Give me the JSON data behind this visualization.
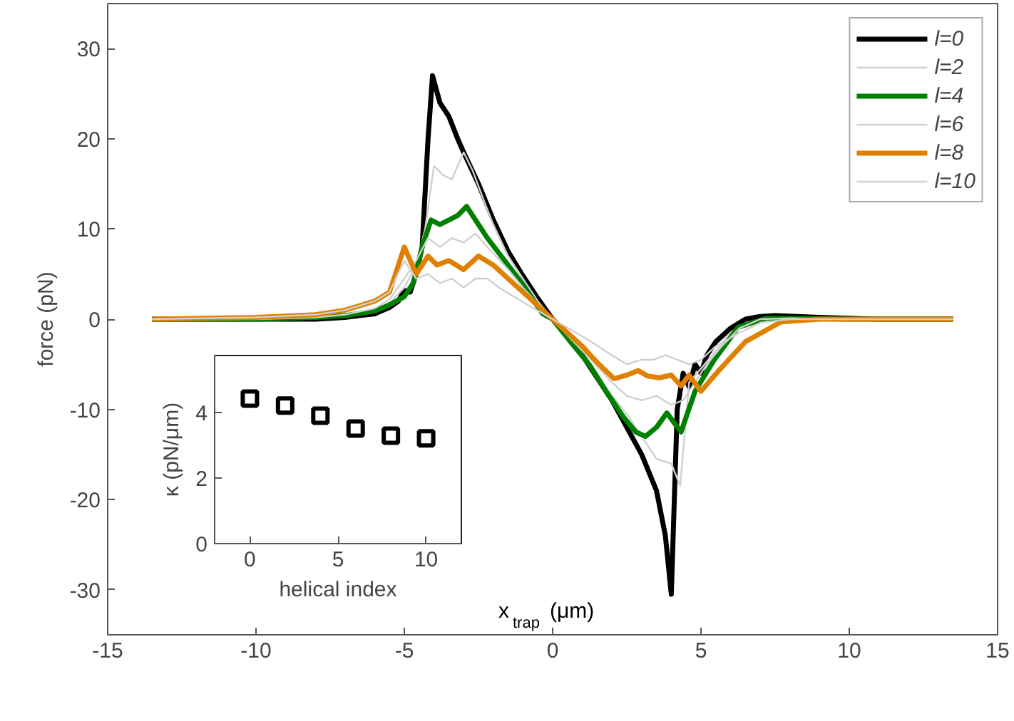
{
  "chart_data": [
    {
      "type": "line",
      "xlabel": "x$_{trap}$ (μm)",
      "ylabel": "force (pN)",
      "xlim": [
        -15,
        15
      ],
      "ylim": [
        -35,
        35
      ],
      "xticks": [
        -15,
        -10,
        -5,
        0,
        5,
        10,
        15
      ],
      "yticks": [
        -30,
        -20,
        -10,
        0,
        10,
        20,
        30
      ],
      "grid": false,
      "legend": "top right",
      "line_style": "solid",
      "marker": "none",
      "series": [
        {
          "name": "l=0",
          "color": "#000000",
          "x": [
            -13.5,
            -10,
            -8,
            -7,
            -6,
            -5.5,
            -5.2,
            -5,
            -4.8,
            -4.6,
            -4.4,
            -4.2,
            -4.05,
            -3.8,
            -3.5,
            -3.2,
            -3,
            -2.5,
            -2,
            -1.5,
            -1,
            -0.5,
            0,
            0.5,
            1,
            1.5,
            2,
            2.5,
            3,
            3.5,
            3.8,
            4.0,
            4.2,
            4.4,
            4.6,
            4.8,
            5.0,
            5.2,
            5.5,
            6,
            6.5,
            7,
            7.5,
            9,
            11,
            13.5
          ],
          "values": [
            0,
            0,
            0,
            0.2,
            0.6,
            1.3,
            2,
            3.2,
            3,
            5,
            8,
            20,
            27,
            24,
            22.5,
            20,
            18.5,
            15,
            11,
            7.5,
            4.8,
            2.3,
            0,
            -2,
            -4,
            -6.5,
            -9,
            -12,
            -15,
            -19,
            -24,
            -30.5,
            -10,
            -6,
            -7.5,
            -5,
            -6,
            -4,
            -2.5,
            -1,
            0,
            0.3,
            0.4,
            0.2,
            0,
            0
          ]
        },
        {
          "name": "l=2",
          "color": "#d0d0d0",
          "x": [
            -13.5,
            -10,
            -8,
            -7,
            -6,
            -5.5,
            -5,
            -4.6,
            -4.3,
            -4.0,
            -3.7,
            -3.4,
            -3.0,
            -2.7,
            -2.3,
            -2,
            -1.5,
            -1,
            -0.5,
            0,
            0.5,
            1,
            1.5,
            2,
            2.5,
            3,
            3.5,
            4,
            4.3,
            4.6,
            5,
            5.5,
            6,
            6.5,
            7,
            8,
            10,
            13.5
          ],
          "values": [
            0,
            0,
            0.1,
            0.3,
            0.8,
            1.8,
            3.5,
            6,
            10,
            17,
            16,
            15.5,
            18.5,
            16.5,
            13,
            10.5,
            7,
            4.5,
            2,
            0,
            -2,
            -4,
            -6,
            -8.5,
            -10.5,
            -13,
            -15.5,
            -16,
            -18.5,
            -7,
            -5.5,
            -3.5,
            -1.5,
            -0.5,
            0,
            0.2,
            0,
            0
          ]
        },
        {
          "name": "l=4",
          "color": "#008000",
          "x": [
            -13.5,
            -10,
            -8,
            -7,
            -6,
            -5.5,
            -5,
            -4.7,
            -4.4,
            -4.1,
            -3.8,
            -3.5,
            -3.2,
            -2.9,
            -2.6,
            -2.2,
            -1.5,
            -1,
            -0.34,
            0,
            0.6,
            1.25,
            1.8,
            2.4,
            2.8,
            3.13,
            3.5,
            3.85,
            4.1,
            4.33,
            4.8,
            5.43,
            6.25,
            7.2,
            8,
            10,
            13.5
          ],
          "values": [
            0,
            0,
            0.2,
            0.4,
            0.9,
            1.6,
            2.5,
            4,
            8,
            11,
            10.5,
            11,
            11.5,
            12.5,
            11,
            9,
            6,
            3.8,
            0.6,
            0,
            -2.5,
            -5.1,
            -8,
            -10.9,
            -12.5,
            -13,
            -12,
            -10.4,
            -11.5,
            -12.5,
            -8,
            -4.6,
            -0.9,
            0.1,
            0.1,
            0,
            0
          ]
        },
        {
          "name": "l=6",
          "color": "#d0d0d0",
          "x": [
            -13.5,
            -10,
            -8,
            -7,
            -6,
            -5.5,
            -5,
            -4.6,
            -4.2,
            -3.8,
            -3.4,
            -3.0,
            -2.6,
            -2.2,
            -1.5,
            -1,
            -0.5,
            0,
            0.5,
            1,
            1.5,
            2,
            2.5,
            3,
            3.5,
            4,
            4.4,
            4.8,
            5.2,
            5.7,
            6.3,
            7,
            8,
            10,
            13.5
          ],
          "values": [
            0,
            0,
            0.2,
            0.5,
            1.2,
            2.2,
            4.5,
            6.5,
            9,
            8,
            9,
            8.5,
            9.5,
            8,
            5.5,
            3.5,
            1.7,
            0,
            -1.8,
            -3.5,
            -5.2,
            -7,
            -8.5,
            -9,
            -8.5,
            -9.5,
            -9,
            -7,
            -5,
            -3,
            -1,
            0,
            0.1,
            0,
            0
          ]
        },
        {
          "name": "l=8",
          "color": "#e08000",
          "x": [
            -13.5,
            -10,
            -8,
            -7,
            -6,
            -5.5,
            -5.0,
            -4.6,
            -4.2,
            -3.9,
            -3.5,
            -3.0,
            -2.5,
            -2,
            -1.5,
            -1,
            -0.5,
            0,
            0.5,
            1,
            1.5,
            2.07,
            2.5,
            2.88,
            3.2,
            3.6,
            4.0,
            4.33,
            4.6,
            5.0,
            5.6,
            6.5,
            7.7,
            9,
            13.5
          ],
          "values": [
            0,
            0.2,
            0.5,
            1,
            2,
            3,
            8,
            5,
            7,
            6,
            6.5,
            5.5,
            7,
            6,
            4.5,
            3,
            1.5,
            0,
            -1.5,
            -3,
            -4.8,
            -6.6,
            -6.2,
            -5.7,
            -6.3,
            -6.5,
            -6.2,
            -7.4,
            -6.2,
            -8,
            -5.7,
            -2.5,
            -0.3,
            0,
            0
          ]
        },
        {
          "name": "l=10",
          "color": "#d0d0d0",
          "x": [
            -13.5,
            -10,
            -8,
            -7,
            -6,
            -5.5,
            -5,
            -4.6,
            -4.2,
            -3.8,
            -3.4,
            -3.0,
            -2.6,
            -2.2,
            -1.8,
            -1.3,
            -0.8,
            0,
            0.8,
            1.3,
            2,
            2.5,
            3,
            3.4,
            3.8,
            4.2,
            4.6,
            5,
            5.5,
            6.3,
            7,
            8,
            10,
            13.5
          ],
          "values": [
            0,
            0.2,
            0.5,
            1,
            2,
            3,
            6.5,
            4.5,
            5,
            4,
            4.5,
            3.5,
            4.5,
            4.5,
            3.5,
            2.5,
            1.5,
            0,
            -1.5,
            -2.5,
            -4,
            -5,
            -4.5,
            -4.5,
            -4,
            -4.5,
            -5,
            -4.5,
            -3,
            -1.5,
            -0.4,
            0,
            0,
            0
          ]
        }
      ]
    },
    {
      "type": "scatter",
      "xlabel": "helical index",
      "ylabel": "κ (pN/μm)",
      "xlim": [
        -2,
        12
      ],
      "ylim": [
        0,
        5.75
      ],
      "xticks": [
        0,
        5,
        10
      ],
      "yticks": [
        0,
        2,
        4
      ],
      "grid": false,
      "marker": "square",
      "series": [
        {
          "color": "#000000",
          "x": [
            0,
            2,
            4,
            6,
            8,
            10
          ],
          "values": [
            4.43,
            4.22,
            3.91,
            3.52,
            3.3,
            3.22
          ]
        }
      ]
    }
  ]
}
